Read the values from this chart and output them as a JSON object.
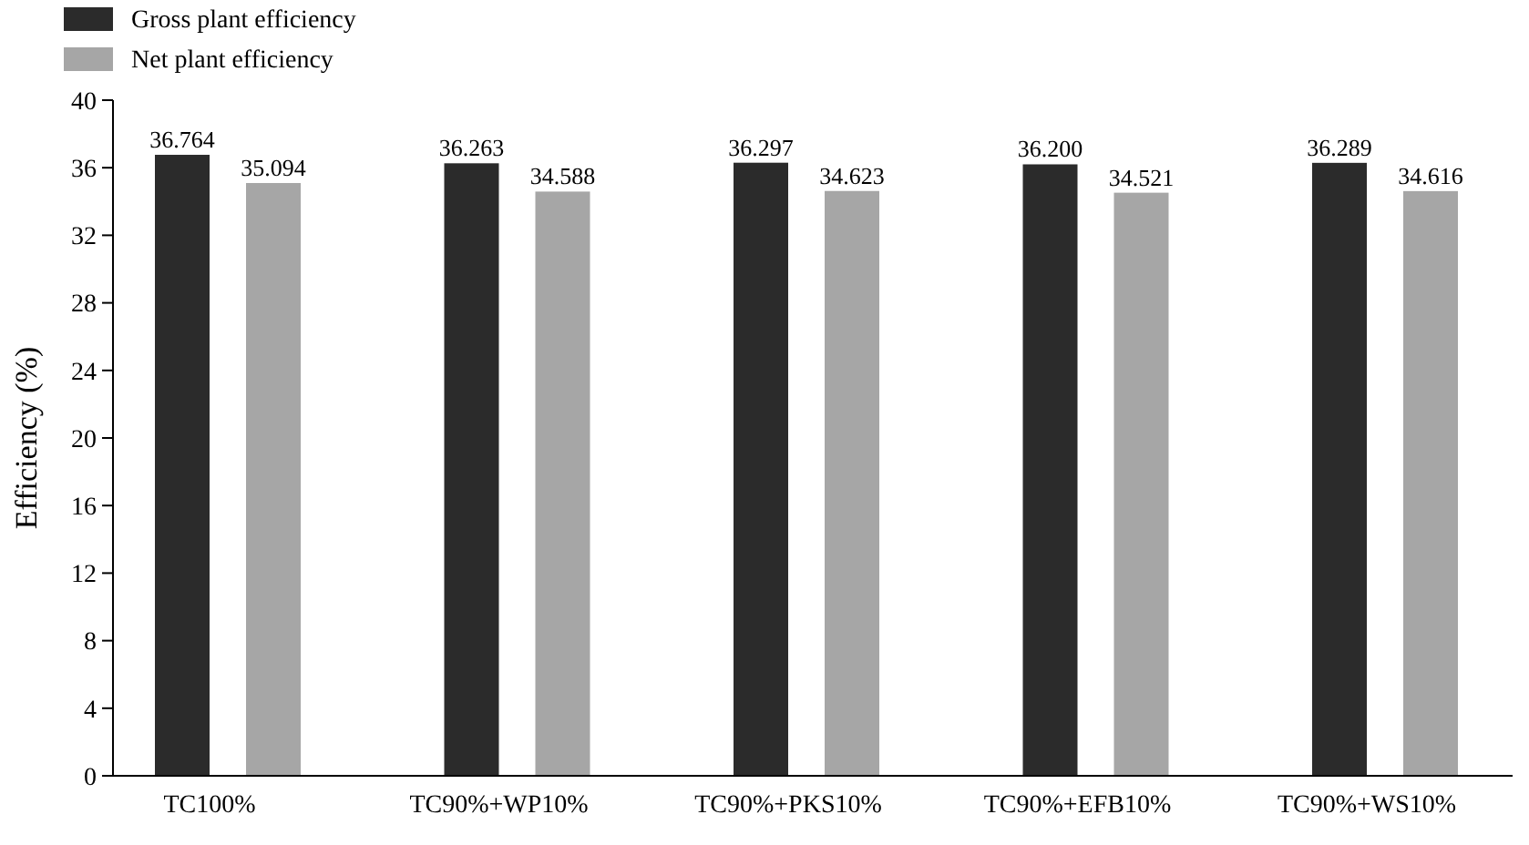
{
  "chart_data": {
    "type": "bar",
    "ylabel": "Efficiency (%)",
    "categories": [
      "TC100%",
      "TC90%+WP10%",
      "TC90%+PKS10%",
      "TC90%+EFB10%",
      "TC90%+WS10%"
    ],
    "series": [
      {
        "name": "Gross plant efficiency",
        "color": "#2b2b2b",
        "values": [
          36.764,
          36.263,
          36.297,
          36.2,
          36.289
        ],
        "value_labels": [
          "36.764",
          "36.263",
          "36.297",
          "36.200",
          "36.289"
        ]
      },
      {
        "name": "Net plant efficiency",
        "color": "#a6a6a6",
        "values": [
          35.094,
          34.588,
          34.623,
          34.521,
          34.616
        ],
        "value_labels": [
          "35.094",
          "34.588",
          "34.623",
          "34.521",
          "34.616"
        ]
      }
    ],
    "ylim": [
      0,
      40
    ],
    "yticks": [
      0,
      4,
      8,
      12,
      16,
      20,
      24,
      28,
      32,
      36,
      40
    ],
    "legend": "top left",
    "grid": false
  }
}
